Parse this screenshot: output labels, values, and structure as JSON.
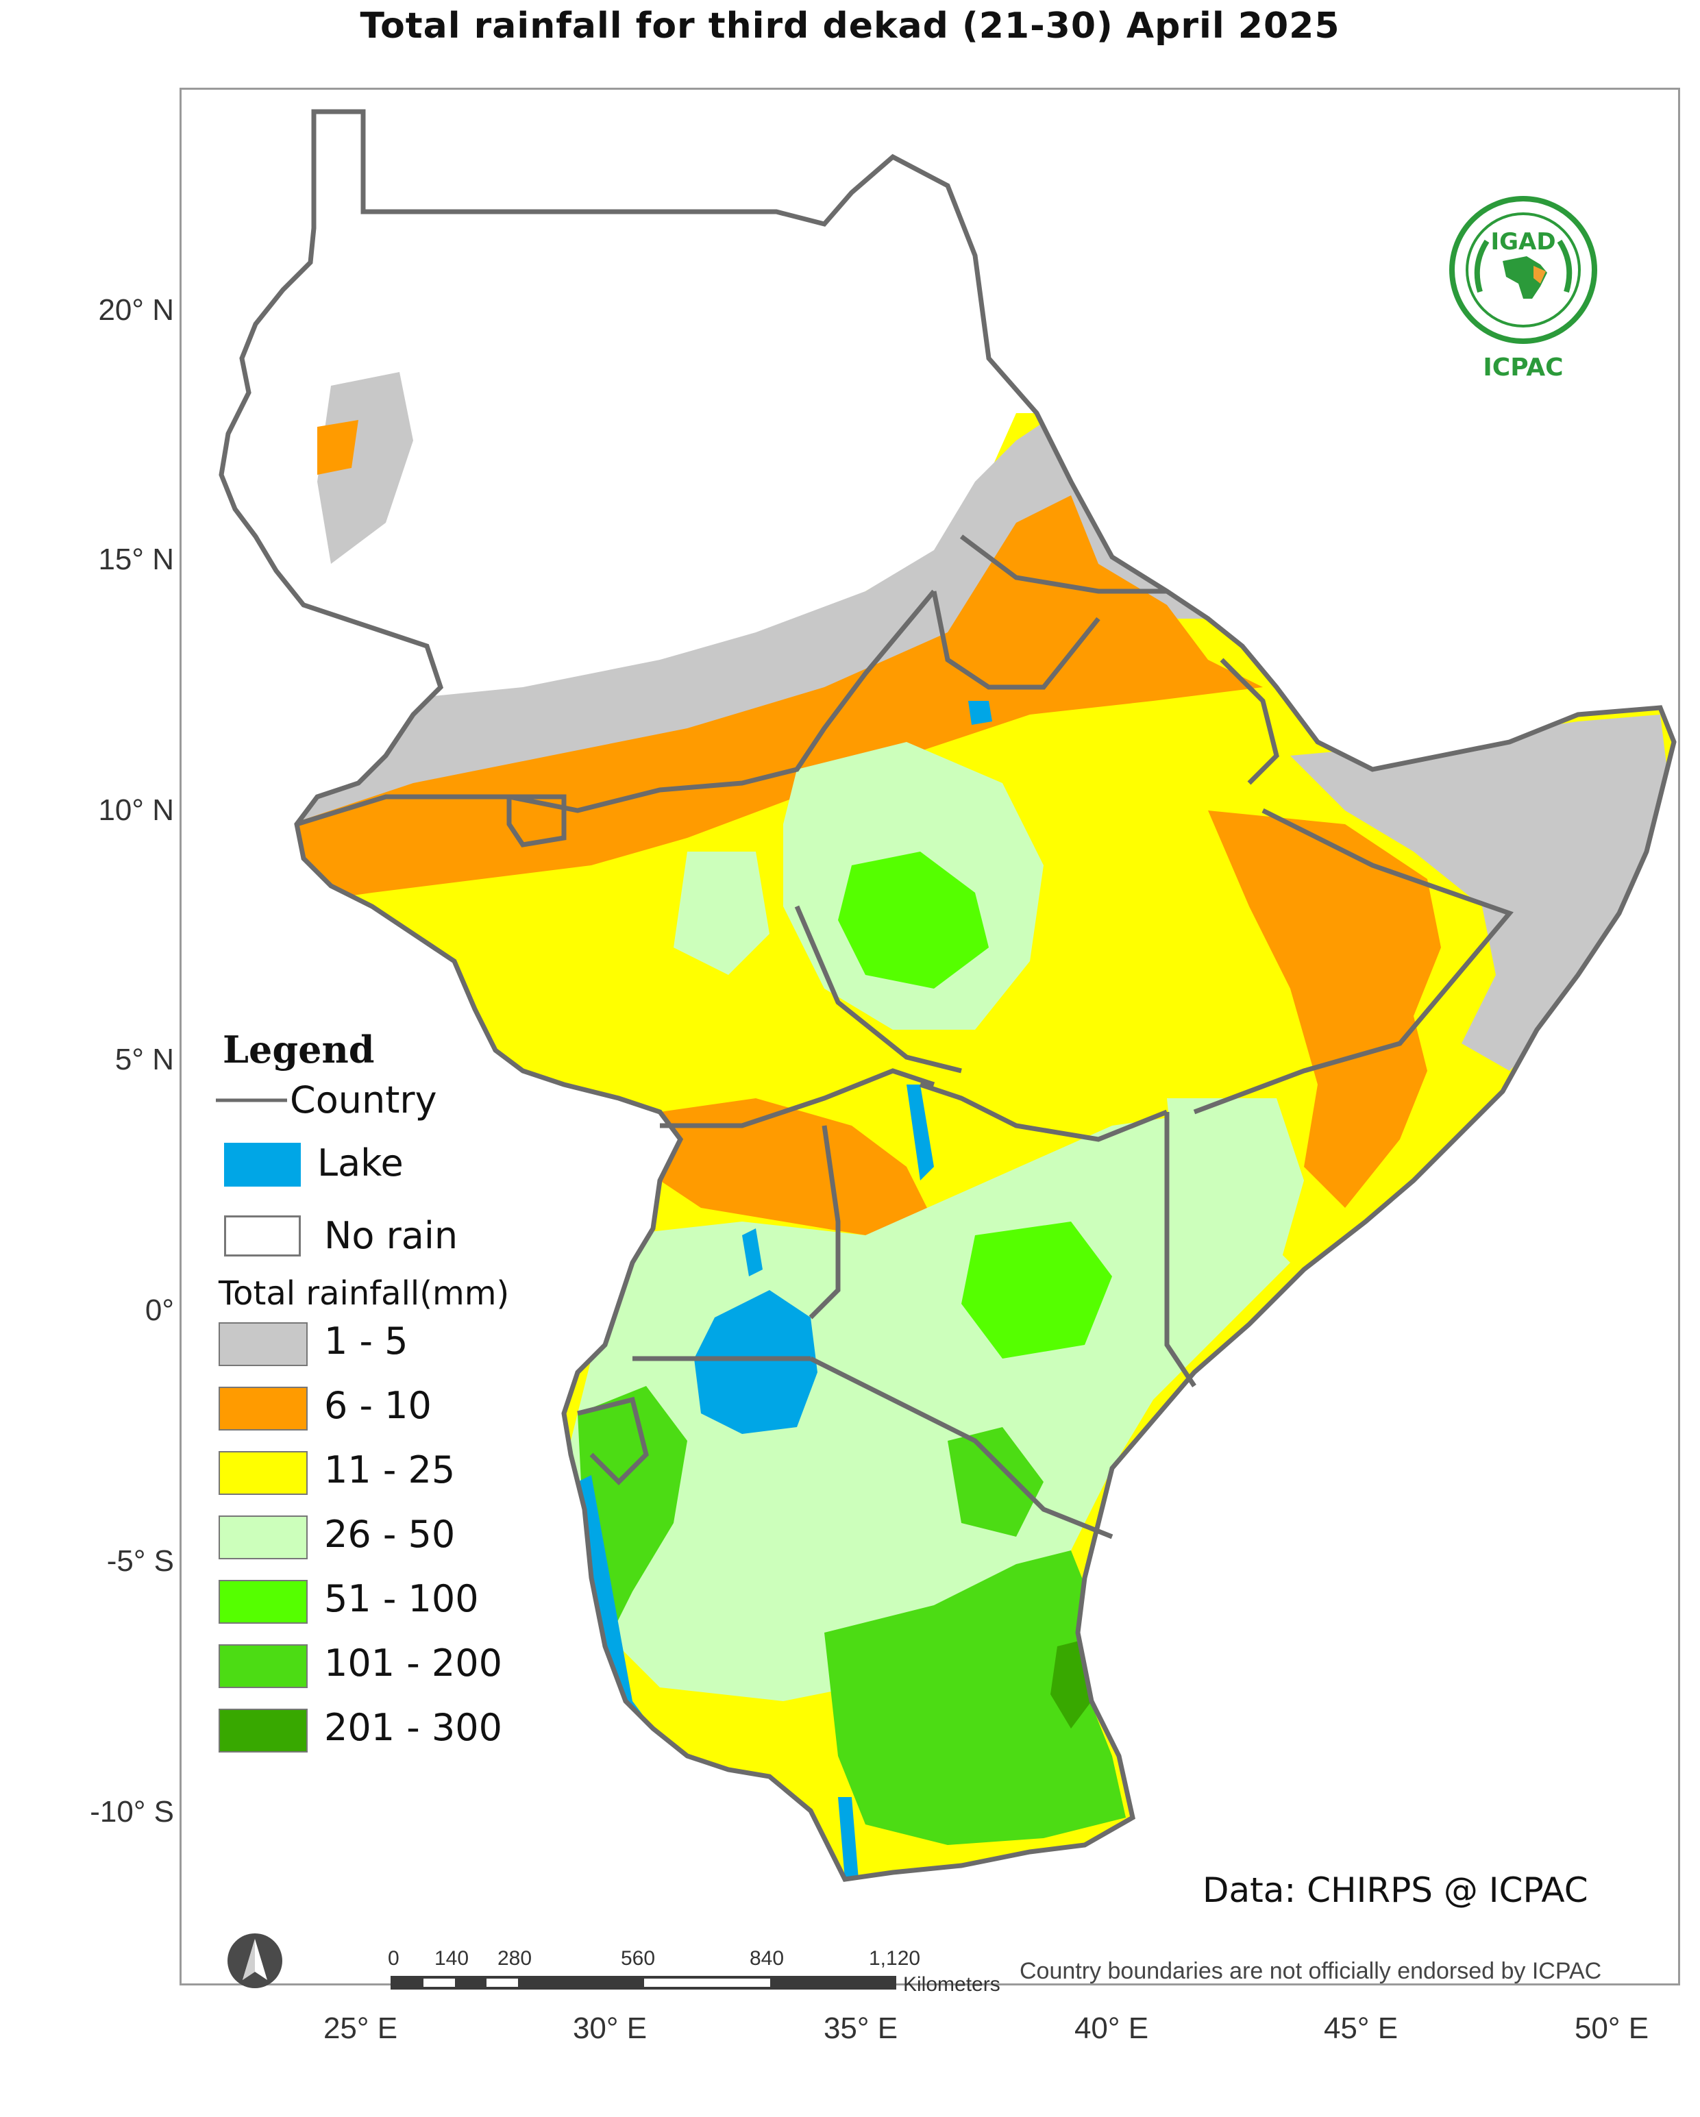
{
  "map": {
    "title": "Total rainfall   for   third dekad (21-30) April 2025",
    "lat_ticks": [
      "20° N",
      "15° N",
      "10° N",
      "5° N",
      "0°",
      "-5° S",
      "-10° S"
    ],
    "lon_ticks": [
      "25° E",
      "30° E",
      "35° E",
      "40° E",
      "45° E",
      "50° E"
    ],
    "data_credit": "Data: CHIRPS @ ICPAC",
    "disclaimer": "Country boundaries are not officially endorsed by ICPAC",
    "colors": {
      "no_rain": "#ffffff",
      "r1_5": "#c8c8c8",
      "r6_10": "#ff9b00",
      "r11_25": "#ffff00",
      "r26_50": "#ccffbb",
      "r51_100": "#55ff00",
      "r101_200": "#4cdc14",
      "r201_300": "#38a800",
      "lake": "#00a6e6",
      "border": "#6b6b6b"
    }
  },
  "legend": {
    "title": "Legend",
    "country": "Country",
    "lake": "Lake",
    "no_rain": "No rain",
    "subtitle": "Total rainfall(mm)",
    "classes": [
      {
        "label": "1 - 5",
        "color": "#c8c8c8"
      },
      {
        "label": "6 - 10",
        "color": "#ff9b00"
      },
      {
        "label": "11 - 25",
        "color": "#ffff00"
      },
      {
        "label": "26 - 50",
        "color": "#ccffbb"
      },
      {
        "label": "51 - 100",
        "color": "#55ff00"
      },
      {
        "label": "101 - 200",
        "color": "#4cdc14"
      },
      {
        "label": "201 - 300",
        "color": "#38a800"
      }
    ]
  },
  "scale_bar": {
    "labels": [
      "0",
      "140",
      "280",
      "560",
      "840",
      "1,120"
    ],
    "unit": "Kilometers"
  },
  "logo": {
    "top_text": "IGAD",
    "bottom_text": "ICPAC"
  }
}
